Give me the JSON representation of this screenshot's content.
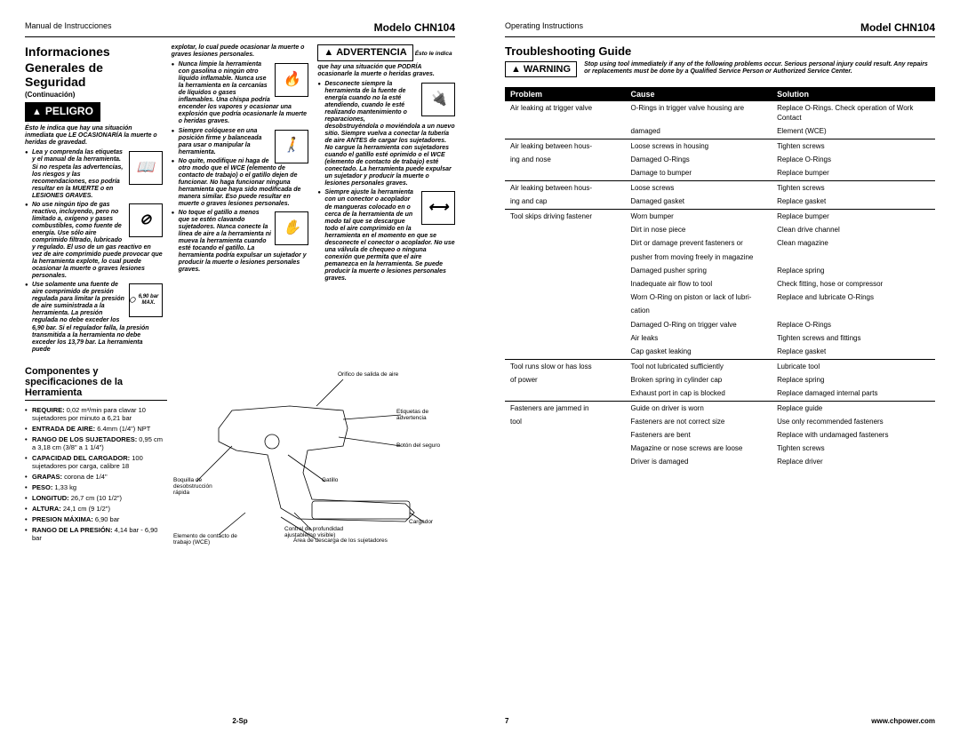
{
  "leftPage": {
    "header_left": "Manual de Instrucciones",
    "header_right": "Modelo CHN104",
    "title1": "Informaciones",
    "title2": "Generales de Seguridad",
    "continuation": "(Continuación)",
    "danger_label": "PELIGRO",
    "danger_intro": "Ésto le indica que hay una situación inmediata que LE OCASIONARÍA la muerte o heridas de gravedad.",
    "col1_bullets": [
      "Lea y comprenda las etiquetas y el manual de la herramienta. Si no respeta las advertencias, los riesgos y las recomendaciones, eso podría resultar en la MUERTE o en LESIONES GRAVES.",
      "No use ningún tipo de gas reactivo, incluyendo, pero no limitado a, oxígeno y gases combustibles, como fuente de energía. Use sólo aire comprimido filtrado, lubricado y regulado. El uso de un gas reactivo en vez de aire comprimido puede provocar que la herramienta explote, lo cual puede ocasionar la muerte o graves lesiones personales.",
      "Use solamente una fuente de aire comprimido de presión regulada para limitar la presión de aire suministrada a la herramienta. La presión regulada no debe exceder los 6,90 bar. Si el regulador falla, la presión transmitida a la herramienta no debe exceder los 13,79 bar. La herramienta puede"
    ],
    "col2_top": "explotar, lo cual puede ocasionar la muerte o graves lesiones personales.",
    "col2_bullets": [
      "Nunca limpie la herramienta con gasolina o ningún otro líquido inflamable. Nunca use la herramienta en la cercanías de líquidos o gases inflamables. Una chispa podría encender los vapores y ocasionar una explosión que podría ocasionarle la muerte o heridas graves.",
      "Siempre colóquese en una posición firme y balanceada para usar o manipular la herramienta.",
      "No quite, modifique ni haga de otro modo que el WCE (elemento de contacto de trabajo) o el gatillo dejen de funcionar. No haga funcionar ninguna herramienta que haya sido modificada de manera similar. Eso puede resultar en muerte o graves lesiones personales.",
      "No toque el gatillo a menos que se estén clavando sujetadores. Nunca conecte la línea de aire a la herramienta ni mueva la herramienta cuando esté tocando el gatillo. La herramienta podría expulsar un sujetador y producir la muerte o lesiones personales graves."
    ],
    "warning_label": "ADVERTENCIA",
    "warning_note": "Ésto le indica",
    "warning_intro": "que hay una situación que PODRÍA ocasionarle la muerte o heridas graves.",
    "col3_bullets": [
      "Desconecte siempre la herramienta de la fuente de energía cuando no la esté atendiendo, cuando le esté realizando mantenimiento o reparaciones, desobstruyéndola o moviéndola a un nuevo sitio. Siempre vuelva a conectar la tubería de aire ANTES de cargar los sujetadores. No cargue la herramienta con sujetadores cuando el gatillo esté oprimido o el WCE (elemento de contacto de trabajo) esté conectado. La herramienta puede expulsar un sujetador y producir la muerte o lesiones personales graves.",
      "Siempre ajuste la herramienta con un conector o acoplador de mangueras colocado en o cerca de la herramienta de un modo tal que se descargue todo el aire comprimido en la herramienta en el momento en que se desconecte el conector o acoplador. No use una válvula de chequeo o ninguna conexión que permita que el aire pemanezca en la herramienta. Se puede producir la muerte o lesiones personales graves."
    ],
    "gauge_label": "6,90 bar MAX.",
    "specs_title": "Componentes y specificaciones de la Herramienta",
    "specs": [
      {
        "label": "REQUIRE:",
        "val": "0,02 m³/min para clavar 10 sujetadores por minuto a 6,21 bar"
      },
      {
        "label": "ENTRADA DE AIRE:",
        "val": "6.4mm (1/4\") NPT"
      },
      {
        "label": "RANGO DE LOS SUJETADORES:",
        "val": "0,95 cm a 3,18 cm (3/8\" a 1 1/4\")"
      },
      {
        "label": "CAPACIDAD DEL CARGADOR:",
        "val": "100 sujetadores por carga, calibre 18"
      },
      {
        "label": "GRAPAS:",
        "val": "corona de 1/4\""
      },
      {
        "label": "PESO:",
        "val": "1,33 kg"
      },
      {
        "label": "LONGITUD:",
        "val": "26,7 cm (10 1/2\")"
      },
      {
        "label": "ALTURA:",
        "val": "24,1 cm (9 1/2\")"
      },
      {
        "label": "PRESION MÁXIMA:",
        "val": "6,90 bar"
      },
      {
        "label": "RANGO DE LA PRESIÓN:",
        "val": "4,14 bar - 6,90 bar"
      }
    ],
    "callouts": {
      "c1": "Orifico de salida de aire",
      "c2": "Etiquetas de advertencia",
      "c3": "Botón del seguro",
      "c4": "Gatillo",
      "c5": "Boquilla de desobstrucción rápida",
      "c6": "Control de profundidad ajustable(no visible)",
      "c7": "Cargador",
      "c8": "Elemento de contacto de trabajo (WCE)",
      "c9": "Área de descarga de los sujetadores"
    },
    "page_num": "2-Sp"
  },
  "rightPage": {
    "header_left": "Operating Instructions",
    "header_right": "Model CHN104",
    "ts_title": "Troubleshooting Guide",
    "warning_label": "WARNING",
    "warning_text": "Stop using tool immediately if any of the following problems occur. Serious personal injury could result. Any repairs or replacements must be done by a Qualified Service Person or Authorized Service Center.",
    "th1": "Problem",
    "th2": "Cause",
    "th3": "Solution",
    "groups": [
      {
        "problem": [
          "Air leaking at trigger valve",
          ""
        ],
        "rows": [
          [
            "O-Rings in trigger valve housing are",
            "Replace O-Rings. Check operation of Work Contact"
          ],
          [
            "damaged",
            "Element (WCE)"
          ]
        ]
      },
      {
        "problem": [
          "Air leaking between hous-",
          "ing and nose"
        ],
        "rows": [
          [
            "Loose screws in housing",
            "Tighten screws"
          ],
          [
            "Damaged O-Rings",
            "Replace O-Rings"
          ],
          [
            "Damage to bumper",
            "Replace bumper"
          ]
        ]
      },
      {
        "problem": [
          "Air leaking between hous-",
          "ing and cap"
        ],
        "rows": [
          [
            "Loose screws",
            "Tighten screws"
          ],
          [
            "Damaged gasket",
            "Replace gasket"
          ]
        ]
      },
      {
        "problem": [
          "Tool skips driving fastener",
          "",
          "",
          "",
          "",
          "",
          "",
          "",
          "",
          ""
        ],
        "rows": [
          [
            "Worn bumper",
            "Replace bumper"
          ],
          [
            "Dirt in nose piece",
            "Clean drive channel"
          ],
          [
            "Dirt or damage prevent fasteners or",
            "Clean magazine"
          ],
          [
            "pusher from moving freely in magazine",
            ""
          ],
          [
            "Damaged pusher spring",
            "Replace spring"
          ],
          [
            "Inadequate air flow to tool",
            "Check fitting, hose or compressor"
          ],
          [
            "Worn O-Ring on piston or lack of lubri-",
            "Replace and lubricate O-Rings"
          ],
          [
            "cation",
            ""
          ],
          [
            "Damaged O-Ring on trigger valve",
            "Replace O-Rings"
          ],
          [
            "Air leaks",
            "Tighten screws and fittings"
          ],
          [
            "Cap gasket leaking",
            "Replace gasket"
          ]
        ]
      },
      {
        "problem": [
          "Tool runs slow or has loss",
          "of power",
          ""
        ],
        "rows": [
          [
            "Tool not lubricated sufficiently",
            "Lubricate tool"
          ],
          [
            "Broken spring in cylinder cap",
            "Replace spring"
          ],
          [
            "Exhaust port in cap is blocked",
            "Replace damaged internal parts"
          ]
        ]
      },
      {
        "problem": [
          "Fasteners are jammed in",
          "tool",
          "",
          "",
          ""
        ],
        "rows": [
          [
            "Guide on driver is worn",
            "Replace guide"
          ],
          [
            "Fasteners are not correct size",
            "Use only recommended fasteners"
          ],
          [
            "Fasteners are bent",
            "Replace with undamaged fasteners"
          ],
          [
            "Magazine or nose screws are loose",
            "Tighten screws"
          ],
          [
            "Driver is damaged",
            "Replace driver"
          ]
        ]
      }
    ],
    "page_num": "7",
    "footer_url": "www.chpower.com"
  }
}
